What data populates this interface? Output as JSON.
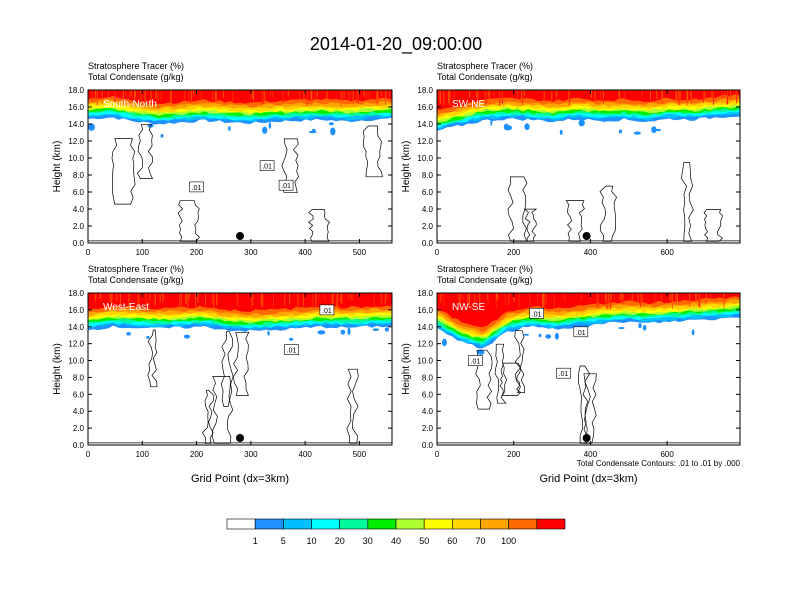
{
  "figure": {
    "title": "2014-01-20_09:00:00",
    "shading_label": "Stratosphere Tracer   (%)",
    "contour_label": "Total Condensate   (g/kg)",
    "ylabel": "Height (km)",
    "xlabel": "Grid Point (dx=3km)",
    "contour_info": "Total Condensate Contours: .01 to .01 by .000",
    "contour_level_label": ".01"
  },
  "chart_data": [
    {
      "type": "heatmap",
      "panel_label": "South-North",
      "ylim": [
        0,
        18
      ],
      "xlim": [
        0,
        560
      ],
      "xticks": [
        0,
        100,
        200,
        300,
        400,
        500
      ],
      "yticks": [
        0,
        2,
        4,
        6,
        8,
        10,
        12,
        14,
        16,
        18
      ],
      "yticklabels": [
        "0.0",
        "2.0",
        "4.0",
        "6.0",
        "8.0",
        "10.0",
        "12.0",
        "14.0",
        "16.0",
        "18.0"
      ],
      "marker_x": 280,
      "tracer_front_km": [
        14.6,
        14.8,
        14.3,
        14.0,
        14.2,
        14.4,
        14.2,
        14.1,
        14.3,
        14.4,
        14.5,
        14.3,
        14.5,
        14.6
      ],
      "contour_labels": [
        {
          "x": 200,
          "y": 6.6
        },
        {
          "x": 330,
          "y": 9.1
        },
        {
          "x": 365,
          "y": 6.8
        }
      ]
    },
    {
      "type": "heatmap",
      "panel_label": "SW-NE",
      "ylim": [
        0,
        18
      ],
      "xlim": [
        0,
        790
      ],
      "xticks": [
        0,
        200,
        400,
        600
      ],
      "yticks": [
        0,
        2,
        4,
        6,
        8,
        10,
        12,
        14,
        16,
        18
      ],
      "yticklabels": [
        "0.0",
        "2.0",
        "4.0",
        "6.0",
        "8.0",
        "10.0",
        "12.0",
        "14.0",
        "16.0",
        "18.0"
      ],
      "marker_x": 390,
      "tracer_front_km": [
        13.2,
        13.8,
        14.4,
        14.6,
        14.5,
        14.3,
        14.6,
        14.4,
        14.5,
        14.3,
        14.6,
        14.5,
        14.8,
        15.0
      ],
      "contour_labels": []
    },
    {
      "type": "heatmap",
      "panel_label": "West-East",
      "ylim": [
        0,
        18
      ],
      "xlim": [
        0,
        560
      ],
      "xticks": [
        0,
        100,
        200,
        300,
        400,
        500
      ],
      "yticks": [
        0,
        2,
        4,
        6,
        8,
        10,
        12,
        14,
        16,
        18
      ],
      "yticklabels": [
        "0.0",
        "2.0",
        "4.0",
        "6.0",
        "8.0",
        "10.0",
        "12.0",
        "14.0",
        "16.0",
        "18.0"
      ],
      "marker_x": 280,
      "tracer_front_km": [
        13.6,
        14.0,
        13.9,
        13.8,
        13.9,
        14.0,
        13.6,
        13.5,
        13.6,
        13.8,
        14.0,
        13.9,
        14.0,
        14.1
      ],
      "contour_labels": [
        {
          "x": 375,
          "y": 11.3
        },
        {
          "x": 440,
          "y": 16.0
        }
      ]
    },
    {
      "type": "heatmap",
      "panel_label": "NW-SE",
      "ylim": [
        0,
        18
      ],
      "xlim": [
        0,
        790
      ],
      "xticks": [
        0,
        200,
        400,
        600
      ],
      "yticks": [
        0,
        2,
        4,
        6,
        8,
        10,
        12,
        14,
        16,
        18
      ],
      "yticklabels": [
        "0.0",
        "2.0",
        "4.0",
        "6.0",
        "8.0",
        "10.0",
        "12.0",
        "14.0",
        "16.0",
        "18.0"
      ],
      "marker_x": 390,
      "tracer_front_km": [
        13.8,
        12.2,
        11.4,
        13.4,
        14.0,
        13.7,
        14.0,
        14.3,
        14.6,
        14.4,
        14.6,
        14.8,
        14.9,
        15.2
      ],
      "contour_labels": [
        {
          "x": 100,
          "y": 10.0
        },
        {
          "x": 260,
          "y": 15.6
        },
        {
          "x": 375,
          "y": 13.4
        },
        {
          "x": 330,
          "y": 8.5
        }
      ]
    }
  ],
  "colorbar": {
    "labels": [
      "1",
      "5",
      "10",
      "20",
      "30",
      "40",
      "50",
      "60",
      "70",
      "100"
    ],
    "colors": [
      "#ffffff",
      "#1e90ff",
      "#00bfff",
      "#00ffff",
      "#00fa9a",
      "#00ee00",
      "#adff2f",
      "#ffff00",
      "#ffd700",
      "#ffa500",
      "#ff6a00",
      "#ff0000"
    ]
  }
}
